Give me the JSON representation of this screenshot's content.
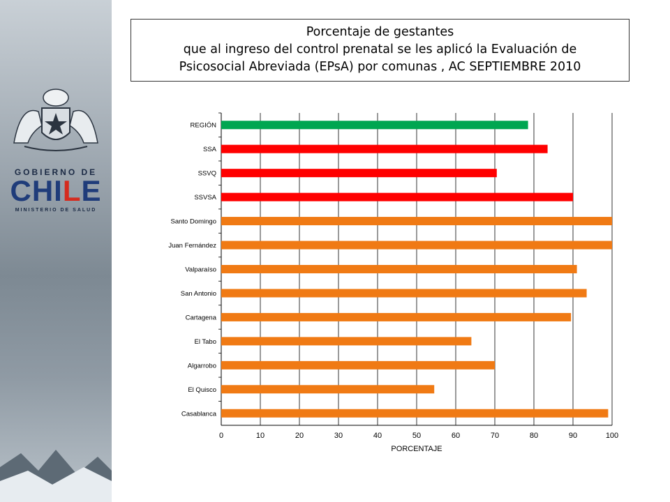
{
  "branding": {
    "gobierno": "GOBIERNO DE",
    "chile_letters": [
      "CHI",
      "L",
      "E"
    ],
    "ministerio": "MINISTERIO DE SALUD",
    "crest_icon": "coat-of-arms-icon"
  },
  "title": {
    "line1": "Porcentaje de gestantes",
    "line2": "que al ingreso del control prenatal se les aplicó la Evaluación de",
    "line3": "Psicosocial Abreviada (EPsA) por comunas ,  AC SEPTIEMBRE 2010"
  },
  "colors": {
    "green": "#00a651",
    "red": "#ff0000",
    "orange": "#f07a14"
  },
  "chart_data": {
    "type": "bar",
    "orientation": "horizontal",
    "categories": [
      "REGIÓN",
      "SSA",
      "SSVQ",
      "SSVSA",
      "Santo Domingo",
      "Juan Fernández",
      "Valparaíso",
      "San Antonio",
      "Cartagena",
      "El Tabo",
      "Algarrobo",
      "El Quisco",
      "Casablanca"
    ],
    "values": [
      78.5,
      83.5,
      70.5,
      90,
      100,
      100,
      91,
      93.5,
      89.5,
      64,
      70,
      54.5,
      99
    ],
    "bar_colors": [
      "green",
      "red",
      "red",
      "red",
      "orange",
      "orange",
      "orange",
      "orange",
      "orange",
      "orange",
      "orange",
      "orange",
      "orange"
    ],
    "xlabel": "PORCENTAJE",
    "xlim": [
      0,
      100
    ],
    "xticks": [
      "0",
      "10",
      "20",
      "30",
      "40",
      "50",
      "60",
      "70",
      "80",
      "90",
      "100"
    ],
    "grid": true
  }
}
